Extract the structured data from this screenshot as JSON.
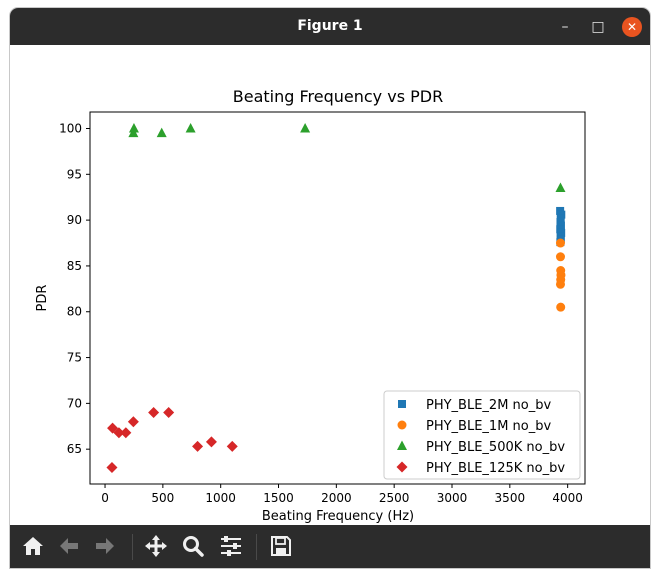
{
  "window": {
    "title": "Figure 1",
    "minimize": "–",
    "maximize": "□",
    "close": "✕"
  },
  "toolbar": {
    "items": [
      "home-icon",
      "back-icon",
      "forward-icon",
      "pan-icon",
      "zoom-icon",
      "configure-icon",
      "save-icon"
    ]
  },
  "colors": {
    "s2M": "#1f77b4",
    "s1M": "#ff7f0e",
    "s500K": "#2ca02c",
    "s125K": "#d62728"
  },
  "chart_data": {
    "type": "scatter",
    "title": "Beating Frequency vs PDR",
    "xlabel": "Beating Frequency (Hz)",
    "ylabel": "PDR",
    "xlim": [
      -130,
      4150
    ],
    "ylim": [
      61.2,
      101.8
    ],
    "xticks": [
      0,
      500,
      1000,
      1500,
      2000,
      2500,
      3000,
      3500,
      4000
    ],
    "yticks": [
      65,
      70,
      75,
      80,
      85,
      90,
      95,
      100
    ],
    "legend_position": "lower-right",
    "series": [
      {
        "name": "PHY_BLE_2M no_bv",
        "marker": "square",
        "color": "#1f77b4",
        "x": [
          3935,
          3945,
          3940,
          3938,
          3942,
          3936,
          3944,
          3939,
          3941,
          3937
        ],
        "y": [
          91.0,
          90.6,
          90.2,
          89.8,
          89.4,
          89.0,
          88.6,
          88.2,
          87.9,
          87.6
        ]
      },
      {
        "name": "PHY_BLE_1M no_bv",
        "marker": "circle",
        "color": "#ff7f0e",
        "x": [
          3938,
          3938,
          3940,
          3942,
          3940,
          3938,
          3940
        ],
        "y": [
          87.5,
          86.0,
          84.5,
          84.0,
          83.5,
          83.0,
          80.5
        ]
      },
      {
        "name": "PHY_BLE_500K no_bv",
        "marker": "triangle",
        "color": "#2ca02c",
        "x": [
          245,
          250,
          490,
          740,
          1730,
          3938
        ],
        "y": [
          99.5,
          100.0,
          99.5,
          100.0,
          100.0,
          93.5
        ]
      },
      {
        "name": "PHY_BLE_125K no_bv",
        "marker": "diamond",
        "color": "#d62728",
        "x": [
          60,
          65,
          120,
          180,
          245,
          420,
          550,
          800,
          920,
          1100
        ],
        "y": [
          63.0,
          67.3,
          66.8,
          66.8,
          68.0,
          69.0,
          69.0,
          65.3,
          65.8,
          65.3
        ]
      }
    ]
  }
}
